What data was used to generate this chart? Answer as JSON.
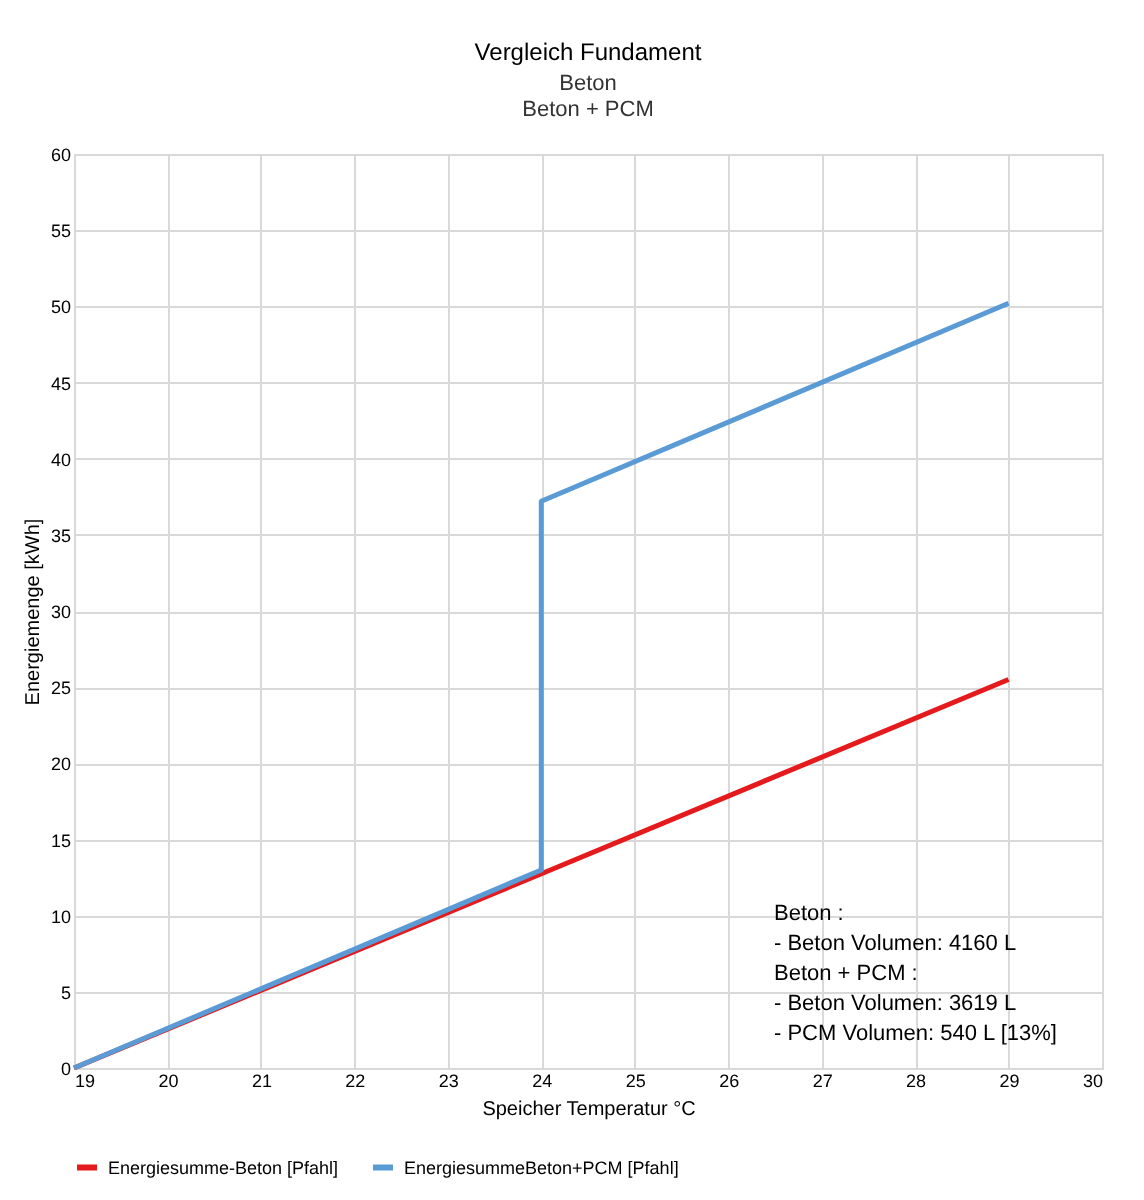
{
  "chart_data": {
    "type": "line",
    "title": "Vergleich Fundament",
    "subtitle": [
      "Beton",
      "Beton + PCM"
    ],
    "xlabel": "Speicher Temperatur °C",
    "ylabel": "Energiemenge [kWh]",
    "xlim": [
      19,
      30
    ],
    "xticks": [
      19,
      20,
      21,
      22,
      23,
      24,
      25,
      26,
      27,
      28,
      29,
      30
    ],
    "ylim": [
      0,
      60
    ],
    "yticks": [
      0,
      5,
      10,
      15,
      20,
      25,
      30,
      35,
      40,
      45,
      50,
      55,
      60
    ],
    "grid": true,
    "legend": "bottom",
    "line_style": "solid",
    "marker": "none",
    "series": [
      {
        "name": "Energiesumme-Beton [Pfahl]",
        "color": "#e41a1c",
        "x": [
          19,
          29
        ],
        "values": [
          0,
          25.5
        ]
      },
      {
        "name": "EnergiesummeBeton+PCM [Pfahl]",
        "color": "#5b9bd5",
        "x": [
          19,
          24,
          24,
          29
        ],
        "values": [
          0,
          13,
          37.2,
          50.2
        ]
      }
    ],
    "annotations": [
      "Beton :",
      "  - Beton Volumen: 4160 L",
      "Beton + PCM :",
      "  - Beton Volumen: 3619 L",
      "  - PCM Volumen: 540 L [13%]"
    ]
  }
}
